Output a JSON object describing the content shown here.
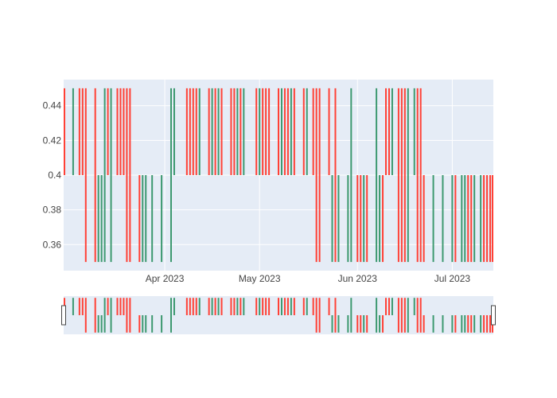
{
  "chart_data": {
    "type": "ohlc",
    "x_type": "date",
    "y_range": [
      0.345,
      0.455
    ],
    "y_ticks": [
      0.36,
      0.38,
      0.4,
      0.42,
      0.44
    ],
    "y_tick_labels": [
      "0.36",
      "0.38",
      "0.4",
      "0.42",
      "0.44"
    ],
    "x_ticks": [
      "2023-04-01",
      "2023-05-01",
      "2023-06-01",
      "2023-07-01"
    ],
    "x_tick_labels": [
      "Apr 2023",
      "May 2023",
      "Jun 2023",
      "Jul 2023"
    ],
    "x_range": [
      "2023-02-28",
      "2023-07-14"
    ],
    "grid": true,
    "range_slider": true,
    "colors": {
      "increasing": "#3d9970",
      "decreasing": "#ff4136",
      "plot_bg": "#e5ecf6",
      "grid": "#ffffff",
      "slider_border": "#444444"
    },
    "bars": [
      {
        "date": "2023-02-28",
        "high": 0.45,
        "low": 0.4,
        "dir": "dec"
      },
      {
        "date": "2023-03-03",
        "high": 0.45,
        "low": 0.4,
        "dir": "inc"
      },
      {
        "date": "2023-03-05",
        "high": 0.45,
        "low": 0.4,
        "dir": "dec"
      },
      {
        "date": "2023-03-06",
        "high": 0.45,
        "low": 0.4,
        "dir": "dec"
      },
      {
        "date": "2023-03-07",
        "high": 0.45,
        "low": 0.35,
        "dir": "dec"
      },
      {
        "date": "2023-03-10",
        "high": 0.45,
        "low": 0.35,
        "dir": "dec"
      },
      {
        "date": "2023-03-11",
        "high": 0.4,
        "low": 0.35,
        "dir": "inc"
      },
      {
        "date": "2023-03-12",
        "high": 0.4,
        "low": 0.35,
        "dir": "inc"
      },
      {
        "date": "2023-03-13",
        "high": 0.45,
        "low": 0.35,
        "dir": "inc"
      },
      {
        "date": "2023-03-14",
        "high": 0.45,
        "low": 0.4,
        "dir": "dec"
      },
      {
        "date": "2023-03-15",
        "high": 0.45,
        "low": 0.35,
        "dir": "inc"
      },
      {
        "date": "2023-03-17",
        "high": 0.45,
        "low": 0.4,
        "dir": "dec"
      },
      {
        "date": "2023-03-18",
        "high": 0.45,
        "low": 0.4,
        "dir": "dec"
      },
      {
        "date": "2023-03-19",
        "high": 0.45,
        "low": 0.4,
        "dir": "dec"
      },
      {
        "date": "2023-03-20",
        "high": 0.45,
        "low": 0.35,
        "dir": "dec"
      },
      {
        "date": "2023-03-21",
        "high": 0.45,
        "low": 0.35,
        "dir": "dec"
      },
      {
        "date": "2023-03-24",
        "high": 0.4,
        "low": 0.35,
        "dir": "dec"
      },
      {
        "date": "2023-03-25",
        "high": 0.4,
        "low": 0.35,
        "dir": "inc"
      },
      {
        "date": "2023-03-26",
        "high": 0.4,
        "low": 0.35,
        "dir": "inc"
      },
      {
        "date": "2023-03-28",
        "high": 0.4,
        "low": 0.35,
        "dir": "inc"
      },
      {
        "date": "2023-03-31",
        "high": 0.4,
        "low": 0.35,
        "dir": "inc"
      },
      {
        "date": "2023-04-03",
        "high": 0.45,
        "low": 0.35,
        "dir": "inc"
      },
      {
        "date": "2023-04-04",
        "high": 0.45,
        "low": 0.4,
        "dir": "inc"
      },
      {
        "date": "2023-04-08",
        "high": 0.45,
        "low": 0.4,
        "dir": "dec"
      },
      {
        "date": "2023-04-09",
        "high": 0.45,
        "low": 0.4,
        "dir": "dec"
      },
      {
        "date": "2023-04-10",
        "high": 0.45,
        "low": 0.4,
        "dir": "dec"
      },
      {
        "date": "2023-04-11",
        "high": 0.45,
        "low": 0.4,
        "dir": "dec"
      },
      {
        "date": "2023-04-12",
        "high": 0.45,
        "low": 0.4,
        "dir": "inc"
      },
      {
        "date": "2023-04-15",
        "high": 0.45,
        "low": 0.4,
        "dir": "dec"
      },
      {
        "date": "2023-04-16",
        "high": 0.45,
        "low": 0.4,
        "dir": "inc"
      },
      {
        "date": "2023-04-17",
        "high": 0.45,
        "low": 0.4,
        "dir": "dec"
      },
      {
        "date": "2023-04-18",
        "high": 0.45,
        "low": 0.4,
        "dir": "inc"
      },
      {
        "date": "2023-04-19",
        "high": 0.45,
        "low": 0.4,
        "dir": "dec"
      },
      {
        "date": "2023-04-22",
        "high": 0.45,
        "low": 0.4,
        "dir": "dec"
      },
      {
        "date": "2023-04-23",
        "high": 0.45,
        "low": 0.4,
        "dir": "dec"
      },
      {
        "date": "2023-04-24",
        "high": 0.45,
        "low": 0.4,
        "dir": "inc"
      },
      {
        "date": "2023-04-25",
        "high": 0.45,
        "low": 0.4,
        "dir": "dec"
      },
      {
        "date": "2023-04-26",
        "high": 0.45,
        "low": 0.4,
        "dir": "inc"
      },
      {
        "date": "2023-04-30",
        "high": 0.45,
        "low": 0.4,
        "dir": "dec"
      },
      {
        "date": "2023-05-01",
        "high": 0.45,
        "low": 0.4,
        "dir": "inc"
      },
      {
        "date": "2023-05-02",
        "high": 0.45,
        "low": 0.4,
        "dir": "dec"
      },
      {
        "date": "2023-05-03",
        "high": 0.45,
        "low": 0.4,
        "dir": "dec"
      },
      {
        "date": "2023-05-04",
        "high": 0.45,
        "low": 0.4,
        "dir": "dec"
      },
      {
        "date": "2023-05-07",
        "high": 0.45,
        "low": 0.4,
        "dir": "dec"
      },
      {
        "date": "2023-05-08",
        "high": 0.45,
        "low": 0.4,
        "dir": "inc"
      },
      {
        "date": "2023-05-09",
        "high": 0.45,
        "low": 0.4,
        "dir": "dec"
      },
      {
        "date": "2023-05-10",
        "high": 0.45,
        "low": 0.4,
        "dir": "dec"
      },
      {
        "date": "2023-05-11",
        "high": 0.45,
        "low": 0.4,
        "dir": "inc"
      },
      {
        "date": "2023-05-12",
        "high": 0.45,
        "low": 0.4,
        "dir": "dec"
      },
      {
        "date": "2023-05-15",
        "high": 0.45,
        "low": 0.4,
        "dir": "dec"
      },
      {
        "date": "2023-05-16",
        "high": 0.45,
        "low": 0.4,
        "dir": "inc"
      },
      {
        "date": "2023-05-18",
        "high": 0.45,
        "low": 0.4,
        "dir": "dec"
      },
      {
        "date": "2023-05-19",
        "high": 0.45,
        "low": 0.35,
        "dir": "dec"
      },
      {
        "date": "2023-05-20",
        "high": 0.45,
        "low": 0.35,
        "dir": "dec"
      },
      {
        "date": "2023-05-23",
        "high": 0.45,
        "low": 0.4,
        "dir": "dec"
      },
      {
        "date": "2023-05-24",
        "high": 0.4,
        "low": 0.35,
        "dir": "inc"
      },
      {
        "date": "2023-05-25",
        "high": 0.45,
        "low": 0.35,
        "dir": "dec"
      },
      {
        "date": "2023-05-26",
        "high": 0.4,
        "low": 0.35,
        "dir": "inc"
      },
      {
        "date": "2023-05-29",
        "high": 0.4,
        "low": 0.35,
        "dir": "inc"
      },
      {
        "date": "2023-05-30",
        "high": 0.45,
        "low": 0.35,
        "dir": "inc"
      },
      {
        "date": "2023-06-01",
        "high": 0.4,
        "low": 0.35,
        "dir": "dec"
      },
      {
        "date": "2023-06-02",
        "high": 0.4,
        "low": 0.35,
        "dir": "dec"
      },
      {
        "date": "2023-06-03",
        "high": 0.4,
        "low": 0.35,
        "dir": "inc"
      },
      {
        "date": "2023-06-04",
        "high": 0.4,
        "low": 0.35,
        "dir": "dec"
      },
      {
        "date": "2023-06-07",
        "high": 0.45,
        "low": 0.35,
        "dir": "inc"
      },
      {
        "date": "2023-06-08",
        "high": 0.4,
        "low": 0.35,
        "dir": "inc"
      },
      {
        "date": "2023-06-09",
        "high": 0.4,
        "low": 0.35,
        "dir": "dec"
      },
      {
        "date": "2023-06-10",
        "high": 0.45,
        "low": 0.4,
        "dir": "dec"
      },
      {
        "date": "2023-06-11",
        "high": 0.45,
        "low": 0.4,
        "dir": "dec"
      },
      {
        "date": "2023-06-12",
        "high": 0.45,
        "low": 0.4,
        "dir": "inc"
      },
      {
        "date": "2023-06-14",
        "high": 0.45,
        "low": 0.35,
        "dir": "dec"
      },
      {
        "date": "2023-06-15",
        "high": 0.45,
        "low": 0.35,
        "dir": "dec"
      },
      {
        "date": "2023-06-16",
        "high": 0.45,
        "low": 0.35,
        "dir": "dec"
      },
      {
        "date": "2023-06-17",
        "high": 0.45,
        "low": 0.35,
        "dir": "inc"
      },
      {
        "date": "2023-06-19",
        "high": 0.45,
        "low": 0.4,
        "dir": "inc"
      },
      {
        "date": "2023-06-20",
        "high": 0.45,
        "low": 0.35,
        "dir": "dec"
      },
      {
        "date": "2023-06-21",
        "high": 0.45,
        "low": 0.35,
        "dir": "dec"
      },
      {
        "date": "2023-06-22",
        "high": 0.4,
        "low": 0.35,
        "dir": "dec"
      },
      {
        "date": "2023-06-25",
        "high": 0.4,
        "low": 0.35,
        "dir": "inc"
      },
      {
        "date": "2023-06-28",
        "high": 0.4,
        "low": 0.35,
        "dir": "inc"
      },
      {
        "date": "2023-07-01",
        "high": 0.4,
        "low": 0.35,
        "dir": "inc"
      },
      {
        "date": "2023-07-02",
        "high": 0.4,
        "low": 0.35,
        "dir": "dec"
      },
      {
        "date": "2023-07-04",
        "high": 0.4,
        "low": 0.35,
        "dir": "inc"
      },
      {
        "date": "2023-07-05",
        "high": 0.4,
        "low": 0.35,
        "dir": "inc"
      },
      {
        "date": "2023-07-06",
        "high": 0.4,
        "low": 0.35,
        "dir": "dec"
      },
      {
        "date": "2023-07-07",
        "high": 0.4,
        "low": 0.35,
        "dir": "dec"
      },
      {
        "date": "2023-07-08",
        "high": 0.4,
        "low": 0.35,
        "dir": "inc"
      },
      {
        "date": "2023-07-10",
        "high": 0.4,
        "low": 0.35,
        "dir": "inc"
      },
      {
        "date": "2023-07-11",
        "high": 0.4,
        "low": 0.35,
        "dir": "dec"
      },
      {
        "date": "2023-07-12",
        "high": 0.4,
        "low": 0.35,
        "dir": "dec"
      },
      {
        "date": "2023-07-13",
        "high": 0.4,
        "low": 0.35,
        "dir": "dec"
      },
      {
        "date": "2023-07-14",
        "high": 0.4,
        "low": 0.35,
        "dir": "dec"
      }
    ]
  }
}
